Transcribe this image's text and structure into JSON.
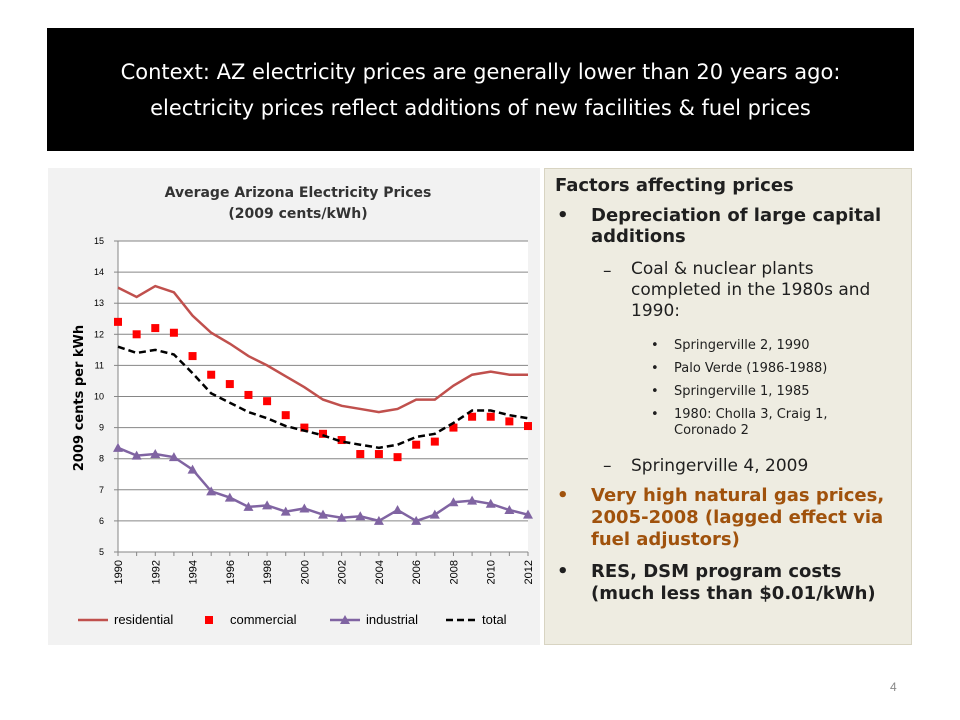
{
  "slide": {
    "title_line1": "Context:  AZ electricity prices are generally lower than 20 years ago:",
    "title_line2": "electricity prices reflect additions of new facilities & fuel prices",
    "page_number": "4"
  },
  "factors": {
    "heading": "Factors affecting prices",
    "bullet1": "Depreciation of large capital additions",
    "sub1": "Coal & nuclear plants completed in the 1980s and 1990:",
    "items": [
      "Springerville 2, 1990",
      "Palo Verde (1986-1988)",
      "Springerville 1, 1985",
      "1980:  Cholla 3, Craig 1, Coronado 2"
    ],
    "sub2": "Springerville 4, 2009",
    "bullet2": "Very high natural gas prices, 2005-2008 (lagged effect via fuel adjustors)",
    "bullet3": "RES, DSM program costs (much less than $0.01/kWh)",
    "bullet_char": "•",
    "dash_char": "–",
    "colors": {
      "highlight": "#a0520c",
      "text": "#1f1f1f"
    }
  },
  "chart_data": {
    "type": "line",
    "title": "Average Arizona Electricity Prices",
    "subtitle": "(2009 cents/kWh)",
    "ylabel": "2009 cents per kWh",
    "xlabel": "",
    "ylim": [
      5,
      15
    ],
    "yticks": [
      5,
      6,
      7,
      8,
      9,
      10,
      11,
      12,
      13,
      14,
      15
    ],
    "x": [
      1990,
      1991,
      1992,
      1993,
      1994,
      1995,
      1996,
      1997,
      1998,
      1999,
      2000,
      2001,
      2002,
      2003,
      2004,
      2005,
      2006,
      2007,
      2008,
      2009,
      2010,
      2011,
      2012
    ],
    "xticks": [
      "1990",
      "1992",
      "1994",
      "1996",
      "1998",
      "2000",
      "2002",
      "2004",
      "2006",
      "2008",
      "2010",
      "2012"
    ],
    "grid": true,
    "legend": "bottom",
    "series": [
      {
        "name": "residential",
        "color": "#c0504d",
        "style": "line",
        "values": [
          13.5,
          13.2,
          13.55,
          13.35,
          12.6,
          12.05,
          11.7,
          11.3,
          11.0,
          10.65,
          10.3,
          9.9,
          9.7,
          9.6,
          9.5,
          9.6,
          9.9,
          9.9,
          10.35,
          10.7,
          10.8,
          10.7,
          10.7
        ]
      },
      {
        "name": "commercial",
        "color": "#ff0000",
        "style": "square",
        "values": [
          12.4,
          12.0,
          12.2,
          12.05,
          11.3,
          10.7,
          10.4,
          10.05,
          9.85,
          9.4,
          9.0,
          8.8,
          8.6,
          8.15,
          8.15,
          8.05,
          8.45,
          8.55,
          9.0,
          9.35,
          9.35,
          9.2,
          9.05
        ]
      },
      {
        "name": "industrial",
        "color": "#8064a2",
        "style": "triangle",
        "values": [
          8.35,
          8.1,
          8.15,
          8.05,
          7.65,
          6.95,
          6.75,
          6.45,
          6.5,
          6.3,
          6.4,
          6.2,
          6.1,
          6.15,
          6.0,
          6.35,
          6.0,
          6.2,
          6.6,
          6.65,
          6.55,
          6.35,
          6.2
        ]
      },
      {
        "name": "total",
        "color": "#000000",
        "style": "dashed",
        "values": [
          11.6,
          11.4,
          11.5,
          11.35,
          10.75,
          10.1,
          9.8,
          9.5,
          9.3,
          9.05,
          8.9,
          8.75,
          8.55,
          8.45,
          8.35,
          8.45,
          8.7,
          8.8,
          9.15,
          9.55,
          9.55,
          9.4,
          9.3
        ]
      }
    ]
  }
}
